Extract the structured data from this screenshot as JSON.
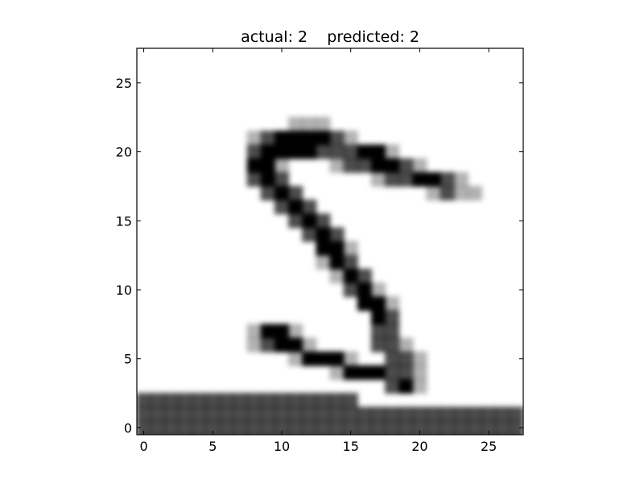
{
  "chart_data": {
    "type": "heatmap",
    "title": "actual: 2    predicted: 2",
    "xlabel": "",
    "ylabel": "",
    "actual": 2,
    "predicted": 2,
    "colormap": "gray_r",
    "colors": {
      "ink": "#000000",
      "paper": "#ffffff"
    },
    "grid": false,
    "image_size": [
      28,
      28
    ],
    "xlim": [
      -0.5,
      27.5
    ],
    "ylim": [
      27.5,
      -0.5
    ],
    "x_ticks": [
      0,
      5,
      10,
      15,
      20,
      25
    ],
    "y_ticks": [
      0,
      5,
      10,
      15,
      20,
      25
    ],
    "x_tick_labels": [
      "0",
      "5",
      "10",
      "15",
      "20",
      "25"
    ],
    "y_tick_labels": [
      "0",
      "5",
      "10",
      "15",
      "20",
      "25"
    ],
    "image_rows": [
      "xxxxxxxxxxxxxxxxxxxxxxxxxxxx",
      "xxxxxxxxxxxxxxxxxxxxxxxxxxxx",
      "xxxxxxxxxxxxxxxxxxxxxxxxxxxx",
      "xxxxxxxxxxxxxxxx............",
      "..................x#+.......",
      "..............+###xx+.......",
      "...........+###+..xx+.......",
      "........+x##+....xx+........",
      "........+##+.....xx.........",
      ".................#x.........",
      "................##+.........",
      "...............x#+..........",
      "..............+#x...........",
      ".............+#x............",
      ".............##+............",
      "............x#x.............",
      "...........x#x..............",
      "..........x#x...............",
      ".........x#x.........+x++...",
      "........x#x......+xx##x+....",
      "........##+...+xx##x+.......",
      "........x####xxx##+.........",
      "........+x####x+............",
      "...........+++..............",
      "............................",
      "............................",
      "............................",
      "............................"
    ]
  }
}
